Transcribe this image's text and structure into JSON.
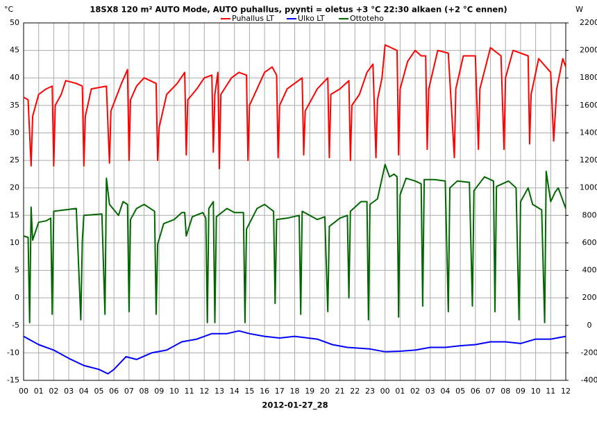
{
  "chart_data": {
    "type": "line",
    "title": "18SX8 120 m² AUTO Mode, AUTO puhallus, pyynti = oletus +3 °C 22:30 alkaen (+2 °C ennen)",
    "xlabel": "2012-01-27_28",
    "ylabel": "°C",
    "y2label": "W",
    "grid": true,
    "legend": "top",
    "xlim": [
      0,
      36
    ],
    "xticks": [
      {
        "value": 0,
        "label": "00"
      },
      {
        "value": 1,
        "label": "01"
      },
      {
        "value": 2,
        "label": "02"
      },
      {
        "value": 3,
        "label": "03"
      },
      {
        "value": 4,
        "label": "04"
      },
      {
        "value": 5,
        "label": "05"
      },
      {
        "value": 6,
        "label": "06"
      },
      {
        "value": 7,
        "label": "07"
      },
      {
        "value": 8,
        "label": "08"
      },
      {
        "value": 9,
        "label": "09"
      },
      {
        "value": 10,
        "label": "10"
      },
      {
        "value": 11,
        "label": "11"
      },
      {
        "value": 12,
        "label": "12"
      },
      {
        "value": 13,
        "label": "13"
      },
      {
        "value": 14,
        "label": "14"
      },
      {
        "value": 15,
        "label": "15"
      },
      {
        "value": 16,
        "label": "16"
      },
      {
        "value": 17,
        "label": "17"
      },
      {
        "value": 18,
        "label": "18"
      },
      {
        "value": 19,
        "label": "19"
      },
      {
        "value": 20,
        "label": "20"
      },
      {
        "value": 21,
        "label": "21"
      },
      {
        "value": 22,
        "label": "22"
      },
      {
        "value": 23,
        "label": "23"
      },
      {
        "value": 24,
        "label": "00"
      },
      {
        "value": 25,
        "label": "01"
      },
      {
        "value": 26,
        "label": "02"
      },
      {
        "value": 27,
        "label": "03"
      },
      {
        "value": 28,
        "label": "04"
      },
      {
        "value": 29,
        "label": "05"
      },
      {
        "value": 30,
        "label": "06"
      },
      {
        "value": 31,
        "label": "07"
      },
      {
        "value": 32,
        "label": "08"
      },
      {
        "value": 33,
        "label": "09"
      },
      {
        "value": 34,
        "label": "10"
      },
      {
        "value": 35,
        "label": "11"
      },
      {
        "value": 36,
        "label": "12"
      }
    ],
    "ylim": [
      -15,
      50
    ],
    "yticks": [
      -15,
      -10,
      -5,
      0,
      5,
      10,
      15,
      20,
      25,
      30,
      35,
      40,
      45,
      50
    ],
    "y2lim": [
      -400,
      2200
    ],
    "y2ticks": [
      -400,
      -200,
      0,
      200,
      400,
      600,
      800,
      1000,
      1200,
      1400,
      1600,
      1800,
      2000,
      2200
    ],
    "series": [
      {
        "name": "Puhallus LT",
        "color": "#ff0000",
        "x": [
          0,
          0.3,
          0.5,
          0.6,
          1,
          1.5,
          1.9,
          2.0,
          2.1,
          2.5,
          2.8,
          3.5,
          3.9,
          4.0,
          4.1,
          4.5,
          5.5,
          5.7,
          5.8,
          6.5,
          6.9,
          7.0,
          7.1,
          7.5,
          8.0,
          8.8,
          8.9,
          9.0,
          9.5,
          10.2,
          10.7,
          10.8,
          10.9,
          11.5,
          12.0,
          12.5,
          12.6,
          12.7,
          12.9,
          13.0,
          13.1,
          13.8,
          14.3,
          14.8,
          14.9,
          15.0,
          15.5,
          16.0,
          16.5,
          16.8,
          16.9,
          17.0,
          17.5,
          18.5,
          18.6,
          18.7,
          19.5,
          20.2,
          20.3,
          20.4,
          21.0,
          21.6,
          21.7,
          21.8,
          22.3,
          22.8,
          23.2,
          23.4,
          23.5,
          23.8,
          24.0,
          24.8,
          24.9,
          25.0,
          25.5,
          26.0,
          26.4,
          26.7,
          26.8,
          26.9,
          27.5,
          28.2,
          28.6,
          28.7,
          29.2,
          30.0,
          30.2,
          30.3,
          31.0,
          31.7,
          31.9,
          32.0,
          32.5,
          33.5,
          33.6,
          33.7,
          34.2,
          35.0,
          35.2,
          35.4,
          35.8,
          36
        ],
        "values": [
          36.5,
          36,
          24,
          33,
          37,
          38,
          38.5,
          24,
          35,
          37,
          39.5,
          39,
          38.5,
          24,
          33,
          38,
          38.5,
          24.5,
          34,
          39,
          41.5,
          25,
          36,
          38.5,
          40,
          39,
          25,
          31,
          37,
          39,
          41,
          26,
          36,
          38,
          40,
          40.5,
          26.5,
          37,
          41,
          23.5,
          37,
          40,
          41,
          40.5,
          25,
          35,
          38,
          41,
          42,
          40.5,
          25.5,
          35,
          38,
          40,
          26,
          34,
          38,
          40,
          25.5,
          37,
          38,
          39.5,
          25,
          35,
          37,
          41,
          42.5,
          25.5,
          36,
          40,
          46,
          45,
          26,
          38,
          43,
          45,
          44,
          44,
          27,
          38,
          45,
          44.5,
          25.5,
          38,
          44,
          44,
          27,
          38,
          45.5,
          44,
          27,
          40,
          45,
          44,
          28,
          37,
          43.5,
          41,
          28.5,
          38,
          43.5,
          42
        ]
      },
      {
        "name": "Ulko LT",
        "color": "#0000ff",
        "x": [
          0,
          1,
          2,
          3,
          4,
          5,
          5.6,
          6,
          6.8,
          7.5,
          8.5,
          9.5,
          10.5,
          11.5,
          12.5,
          13.5,
          14.3,
          15,
          16,
          17,
          18,
          19.5,
          20.5,
          21.5,
          23,
          24,
          25,
          26,
          27,
          28,
          29,
          30,
          31,
          32,
          33,
          34,
          35,
          36
        ],
        "values": [
          -7,
          -8.5,
          -9.5,
          -11,
          -12.3,
          -13,
          -13.8,
          -13,
          -10.7,
          -11.2,
          -10,
          -9.5,
          -8,
          -7.5,
          -6.5,
          -6.5,
          -6,
          -6.5,
          -7,
          -7.3,
          -7,
          -7.5,
          -8.5,
          -9,
          -9.3,
          -9.8,
          -9.7,
          -9.5,
          -9,
          -9,
          -8.7,
          -8.5,
          -8,
          -8,
          -8.3,
          -7.5,
          -7.5,
          -7
        ]
      },
      {
        "name": "Ottoteho",
        "color": "#006600",
        "axis": "y2",
        "x": [
          0,
          0.3,
          0.4,
          0.5,
          0.6,
          1,
          1.5,
          1.8,
          1.9,
          2.0,
          3.5,
          3.8,
          3.9,
          4.0,
          5.2,
          5.4,
          5.5,
          5.7,
          6.3,
          6.6,
          6.9,
          7.0,
          7.1,
          7.5,
          8.0,
          8.7,
          8.8,
          8.9,
          9.3,
          10.0,
          10.5,
          10.7,
          10.8,
          11.2,
          11.9,
          12.1,
          12.2,
          12.3,
          12.6,
          12.7,
          12.8,
          13.5,
          14.0,
          14.6,
          14.7,
          14.8,
          15.5,
          16.0,
          16.6,
          16.7,
          16.8,
          17.5,
          18.3,
          18.4,
          18.5,
          19.5,
          20.0,
          20.2,
          20.3,
          21.0,
          21.5,
          21.6,
          21.7,
          22.4,
          22.8,
          22.9,
          23.0,
          23.5,
          24.0,
          24.3,
          24.6,
          24.8,
          24.9,
          25.0,
          25.4,
          26.0,
          26.4,
          26.5,
          26.6,
          27.3,
          28.0,
          28.2,
          28.3,
          28.8,
          29.6,
          29.8,
          29.9,
          30.6,
          31.2,
          31.3,
          31.4,
          32.2,
          32.7,
          32.9,
          33.0,
          33.5,
          33.8,
          34.4,
          34.6,
          34.7,
          35.0,
          35.3,
          35.5,
          36
        ],
        "values": [
          650,
          640,
          20,
          860,
          620,
          750,
          760,
          780,
          80,
          830,
          850,
          40,
          620,
          800,
          810,
          80,
          1070,
          880,
          800,
          900,
          880,
          100,
          770,
          850,
          880,
          830,
          80,
          590,
          740,
          770,
          820,
          820,
          650,
          790,
          820,
          780,
          20,
          850,
          900,
          20,
          790,
          850,
          820,
          820,
          20,
          700,
          850,
          880,
          830,
          160,
          770,
          780,
          800,
          80,
          830,
          770,
          790,
          100,
          720,
          780,
          800,
          200,
          830,
          900,
          900,
          40,
          880,
          920,
          1170,
          1080,
          1100,
          1080,
          60,
          950,
          1070,
          1050,
          1030,
          140,
          1060,
          1060,
          1050,
          100,
          1000,
          1050,
          1040,
          140,
          980,
          1080,
          1050,
          100,
          1010,
          1050,
          1000,
          40,
          900,
          1000,
          880,
          840,
          20,
          1120,
          900,
          970,
          1000,
          850
        ]
      }
    ]
  }
}
